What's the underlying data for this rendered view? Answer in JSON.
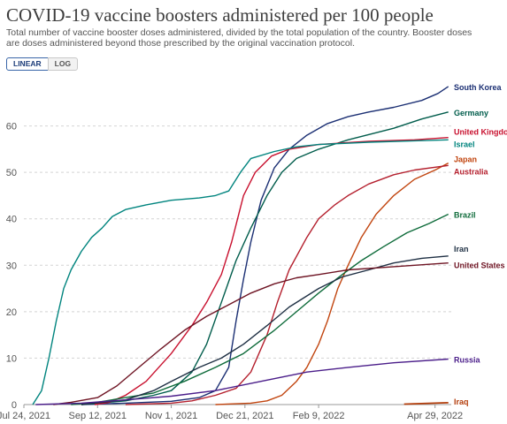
{
  "title": "COVID-19 vaccine boosters administered per 100 people",
  "subtitle": "Total number of vaccine booster doses administered, divided by the total population of the country. Booster doses are doses administered beyond  those prescribed by the original vaccination protocol.",
  "scale_toggle": {
    "linear_label": "LINEAR",
    "log_label": "LOG",
    "selected": "LINEAR"
  },
  "chart_data": {
    "type": "line",
    "x_ticks": [
      "Jul 24, 2021",
      "Sep 12, 2021",
      "Nov 1, 2021",
      "Dec 21, 2021",
      "Feb 9, 2022",
      "Apr 29, 2022"
    ],
    "y_ticks": [
      0,
      10,
      20,
      30,
      40,
      50,
      60
    ],
    "xlim": [
      "2021-07-24",
      "2022-05-10"
    ],
    "ylim": [
      0,
      70
    ],
    "grid": "horizontal",
    "legend": "right-end labels",
    "series": [
      {
        "name": "South Korea",
        "color": "#1b2f73",
        "points": [
          [
            "2021-09-01",
            0
          ],
          [
            "2021-10-01",
            0.3
          ],
          [
            "2021-11-01",
            0.7
          ],
          [
            "2021-11-20",
            1.5
          ],
          [
            "2021-12-01",
            3
          ],
          [
            "2021-12-10",
            8
          ],
          [
            "2021-12-15",
            18
          ],
          [
            "2021-12-20",
            27
          ],
          [
            "2021-12-25",
            35
          ],
          [
            "2022-01-01",
            44
          ],
          [
            "2022-01-10",
            51
          ],
          [
            "2022-01-20",
            55
          ],
          [
            "2022-02-01",
            58
          ],
          [
            "2022-02-15",
            60.5
          ],
          [
            "2022-03-01",
            62
          ],
          [
            "2022-03-15",
            63
          ],
          [
            "2022-04-01",
            64
          ],
          [
            "2022-04-20",
            65.5
          ],
          [
            "2022-05-01",
            67
          ],
          [
            "2022-05-08",
            68.5
          ]
        ]
      },
      {
        "name": "Germany",
        "color": "#005c4b",
        "points": [
          [
            "2021-09-01",
            0
          ],
          [
            "2021-10-01",
            0.8
          ],
          [
            "2021-10-20",
            2
          ],
          [
            "2021-11-01",
            3
          ],
          [
            "2021-11-15",
            7
          ],
          [
            "2021-11-25",
            13
          ],
          [
            "2021-12-05",
            22
          ],
          [
            "2021-12-15",
            31
          ],
          [
            "2021-12-25",
            38
          ],
          [
            "2022-01-05",
            45
          ],
          [
            "2022-01-15",
            50
          ],
          [
            "2022-01-25",
            53
          ],
          [
            "2022-02-09",
            55
          ],
          [
            "2022-03-01",
            57
          ],
          [
            "2022-04-01",
            59.5
          ],
          [
            "2022-04-20",
            61.5
          ],
          [
            "2022-05-08",
            63
          ]
        ]
      },
      {
        "name": "United Kingdom",
        "color": "#c8102e",
        "points": [
          [
            "2021-09-10",
            0
          ],
          [
            "2021-09-20",
            0.5
          ],
          [
            "2021-10-01",
            2
          ],
          [
            "2021-10-15",
            5
          ],
          [
            "2021-11-01",
            11
          ],
          [
            "2021-11-15",
            17
          ],
          [
            "2021-11-25",
            22
          ],
          [
            "2021-12-05",
            28
          ],
          [
            "2021-12-12",
            35
          ],
          [
            "2021-12-20",
            45
          ],
          [
            "2021-12-28",
            50
          ],
          [
            "2022-01-08",
            53.5
          ],
          [
            "2022-01-20",
            55
          ],
          [
            "2022-02-09",
            56
          ],
          [
            "2022-03-15",
            56.7
          ],
          [
            "2022-04-15",
            57
          ],
          [
            "2022-05-08",
            57.5
          ]
        ]
      },
      {
        "name": "Israel",
        "color": "#00847e",
        "points": [
          [
            "2021-07-30",
            0
          ],
          [
            "2021-08-05",
            3
          ],
          [
            "2021-08-10",
            10
          ],
          [
            "2021-08-15",
            18
          ],
          [
            "2021-08-20",
            25
          ],
          [
            "2021-08-25",
            29
          ],
          [
            "2021-09-01",
            33
          ],
          [
            "2021-09-08",
            36
          ],
          [
            "2021-09-15",
            38
          ],
          [
            "2021-09-22",
            40.5
          ],
          [
            "2021-10-01",
            42
          ],
          [
            "2021-10-15",
            43
          ],
          [
            "2021-11-01",
            44
          ],
          [
            "2021-11-20",
            44.5
          ],
          [
            "2021-12-01",
            45
          ],
          [
            "2021-12-10",
            46
          ],
          [
            "2021-12-18",
            50
          ],
          [
            "2021-12-25",
            53
          ],
          [
            "2022-01-10",
            54.5
          ],
          [
            "2022-01-25",
            55.5
          ],
          [
            "2022-02-09",
            56
          ],
          [
            "2022-03-15",
            56.5
          ],
          [
            "2022-04-15",
            56.8
          ],
          [
            "2022-05-08",
            57
          ]
        ]
      },
      {
        "name": "Japan",
        "color": "#c1440e",
        "points": [
          [
            "2021-12-01",
            0
          ],
          [
            "2021-12-25",
            0.3
          ],
          [
            "2022-01-05",
            0.8
          ],
          [
            "2022-01-15",
            2
          ],
          [
            "2022-01-25",
            5
          ],
          [
            "2022-02-01",
            8
          ],
          [
            "2022-02-09",
            13
          ],
          [
            "2022-02-15",
            18
          ],
          [
            "2022-02-22",
            25
          ],
          [
            "2022-03-01",
            30
          ],
          [
            "2022-03-10",
            36
          ],
          [
            "2022-03-20",
            41
          ],
          [
            "2022-04-01",
            45
          ],
          [
            "2022-04-15",
            48.5
          ],
          [
            "2022-04-29",
            50.5
          ],
          [
            "2022-05-08",
            52
          ]
        ]
      },
      {
        "name": "Australia",
        "color": "#b41f2d",
        "points": [
          [
            "2021-10-01",
            0
          ],
          [
            "2021-11-01",
            0.3
          ],
          [
            "2021-11-15",
            0.8
          ],
          [
            "2021-12-01",
            2
          ],
          [
            "2021-12-15",
            3.5
          ],
          [
            "2021-12-25",
            7
          ],
          [
            "2022-01-05",
            15
          ],
          [
            "2022-01-12",
            22
          ],
          [
            "2022-01-20",
            29
          ],
          [
            "2022-02-01",
            36
          ],
          [
            "2022-02-09",
            40
          ],
          [
            "2022-02-20",
            43
          ],
          [
            "2022-03-01",
            45
          ],
          [
            "2022-03-15",
            47.5
          ],
          [
            "2022-04-01",
            49.5
          ],
          [
            "2022-04-15",
            50.5
          ],
          [
            "2022-05-08",
            51.5
          ]
        ]
      },
      {
        "name": "Brazil",
        "color": "#0e6b3a",
        "points": [
          [
            "2021-08-25",
            0
          ],
          [
            "2021-09-10",
            0.4
          ],
          [
            "2021-10-01",
            1.5
          ],
          [
            "2021-10-20",
            2.5
          ],
          [
            "2021-11-10",
            5
          ],
          [
            "2021-12-01",
            8
          ],
          [
            "2021-12-20",
            11
          ],
          [
            "2022-01-10",
            16
          ],
          [
            "2022-01-25",
            20
          ],
          [
            "2022-02-09",
            24
          ],
          [
            "2022-02-25",
            28
          ],
          [
            "2022-03-10",
            31
          ],
          [
            "2022-03-25",
            34
          ],
          [
            "2022-04-10",
            37
          ],
          [
            "2022-04-25",
            39
          ],
          [
            "2022-05-08",
            41
          ]
        ]
      },
      {
        "name": "Iran",
        "color": "#1f3044",
        "points": [
          [
            "2021-09-01",
            0
          ],
          [
            "2021-10-01",
            1
          ],
          [
            "2021-10-20",
            3
          ],
          [
            "2021-11-01",
            5
          ],
          [
            "2021-11-20",
            8
          ],
          [
            "2021-12-05",
            10
          ],
          [
            "2021-12-20",
            13
          ],
          [
            "2022-01-05",
            17
          ],
          [
            "2022-01-20",
            21
          ],
          [
            "2022-02-09",
            25
          ],
          [
            "2022-02-25",
            27.5
          ],
          [
            "2022-03-15",
            29
          ],
          [
            "2022-04-01",
            30.5
          ],
          [
            "2022-04-20",
            31.5
          ],
          [
            "2022-05-08",
            32
          ]
        ]
      },
      {
        "name": "United States",
        "color": "#6e1423",
        "points": [
          [
            "2021-08-13",
            0
          ],
          [
            "2021-08-25",
            0.5
          ],
          [
            "2021-09-12",
            1.5
          ],
          [
            "2021-09-25",
            4
          ],
          [
            "2021-10-10",
            8
          ],
          [
            "2021-10-25",
            12
          ],
          [
            "2021-11-10",
            16
          ],
          [
            "2021-11-25",
            19
          ],
          [
            "2021-12-10",
            21.5
          ],
          [
            "2021-12-25",
            24
          ],
          [
            "2022-01-10",
            26
          ],
          [
            "2022-01-25",
            27.3
          ],
          [
            "2022-02-09",
            28
          ],
          [
            "2022-03-01",
            29
          ],
          [
            "2022-04-01",
            29.7
          ],
          [
            "2022-05-08",
            30.5
          ]
        ]
      },
      {
        "name": "Russia",
        "color": "#4b1e8a",
        "points": [
          [
            "2021-08-01",
            0
          ],
          [
            "2021-09-01",
            0.3
          ],
          [
            "2021-10-01",
            1
          ],
          [
            "2021-11-01",
            1.8
          ],
          [
            "2021-12-01",
            3
          ],
          [
            "2022-01-01",
            5
          ],
          [
            "2022-02-01",
            7
          ],
          [
            "2022-03-01",
            8
          ],
          [
            "2022-04-01",
            9
          ],
          [
            "2022-05-08",
            9.8
          ]
        ]
      },
      {
        "name": "Iraq",
        "color": "#b43e0c",
        "points": [
          [
            "2022-04-08",
            0.1
          ],
          [
            "2022-05-08",
            0.4
          ]
        ]
      }
    ]
  }
}
